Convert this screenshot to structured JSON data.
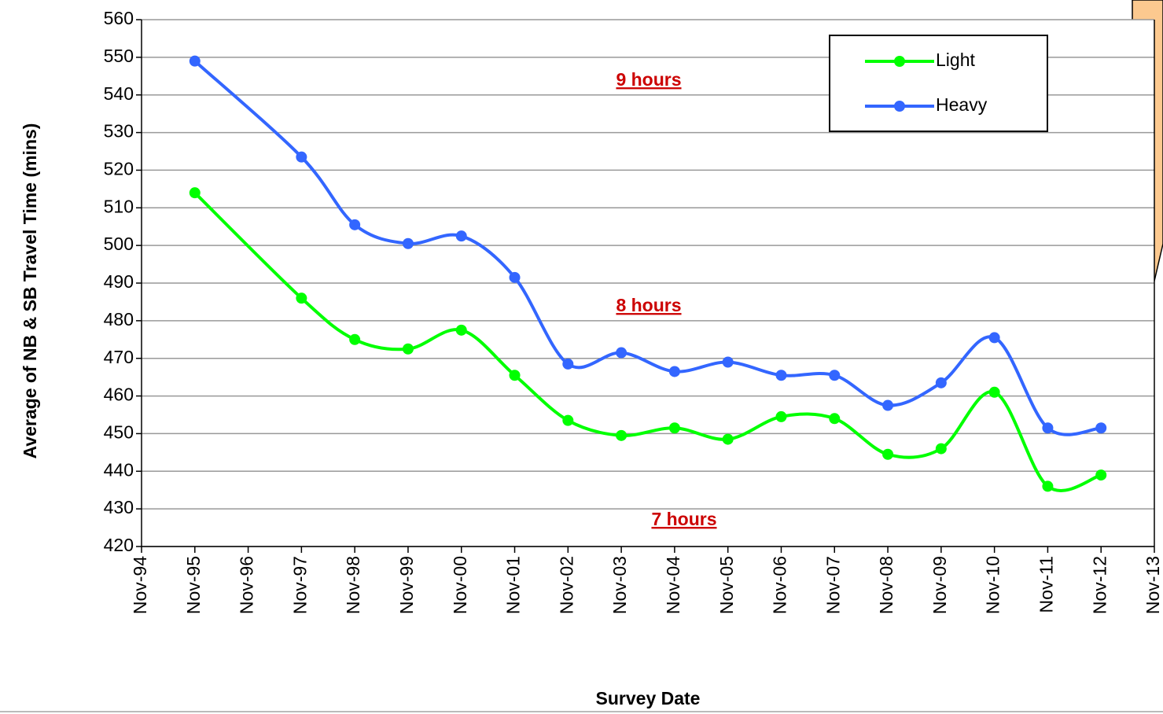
{
  "chart_data": {
    "type": "line",
    "y_label": "Average of NB & SB Travel Time (mins)",
    "x_label": "Survey Date",
    "xticks": [
      "Nov-94",
      "Nov-95",
      "Nov-96",
      "Nov-97",
      "Nov-98",
      "Nov-99",
      "Nov-00",
      "Nov-01",
      "Nov-02",
      "Nov-03",
      "Nov-04",
      "Nov-05",
      "Nov-06",
      "Nov-07",
      "Nov-08",
      "Nov-09",
      "Nov-10",
      "Nov-11",
      "Nov-12",
      "Nov-13"
    ],
    "x": [
      "Nov-95",
      "Nov-97",
      "Nov-98",
      "Nov-99",
      "Nov-00",
      "Nov-01",
      "Nov-02",
      "Nov-03",
      "Nov-04",
      "Nov-05",
      "Nov-06",
      "Nov-07",
      "Nov-08",
      "Nov-09",
      "Nov-10",
      "Nov-11",
      "Nov-12"
    ],
    "series": [
      {
        "name": "Light",
        "color": "#00ff00",
        "values": [
          514,
          486,
          475,
          472.5,
          477.5,
          465.5,
          453.5,
          449.5,
          451.5,
          448.5,
          454.5,
          454,
          444.5,
          446,
          461,
          436,
          439
        ]
      },
      {
        "name": "Heavy",
        "color": "#3366ff",
        "values": [
          549,
          523.5,
          505.5,
          500.5,
          502.5,
          491.5,
          468.5,
          471.5,
          466.5,
          469,
          465.5,
          465.5,
          457.5,
          463.5,
          475.5,
          451.5,
          451.5
        ]
      }
    ],
    "ylim": [
      420,
      560
    ],
    "yticks": [
      420,
      430,
      440,
      450,
      460,
      470,
      480,
      490,
      500,
      510,
      520,
      530,
      540,
      550,
      560
    ],
    "grid": true,
    "legend": "upper right",
    "annotations": [
      "9 hours",
      "8 hours",
      "7 hours"
    ]
  }
}
